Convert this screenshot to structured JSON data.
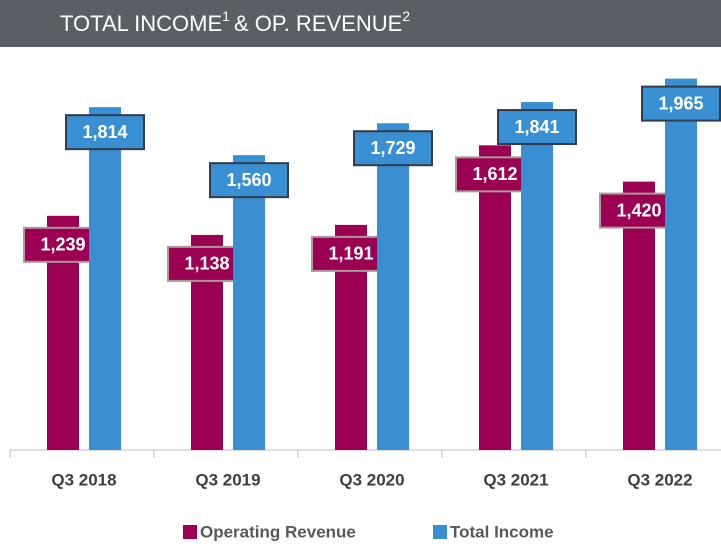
{
  "chart_data": {
    "type": "bar",
    "title": [
      "TOTAL INCOME",
      "1",
      "&  OP. REVENUE",
      "2"
    ],
    "categories": [
      "Q3 2018",
      "Q3 2019",
      "Q3 2020",
      "Q3 2021",
      "Q3 2022"
    ],
    "series": [
      {
        "name": "Operating Revenue",
        "color": "#9c0052",
        "values": [
          1239,
          1138,
          1191,
          1612,
          1420
        ],
        "value_labels": [
          "1,239",
          "1,138",
          "1,191",
          "1,612",
          "1,420"
        ]
      },
      {
        "name": "Total Income",
        "color": "#3a8fd2",
        "values": [
          1814,
          1560,
          1729,
          1841,
          1965
        ],
        "value_labels": [
          "1,814",
          "1,560",
          "1,729",
          "1,841",
          "1,965"
        ]
      }
    ],
    "ylim": [
      0,
      2000
    ],
    "legend": "bottom"
  }
}
